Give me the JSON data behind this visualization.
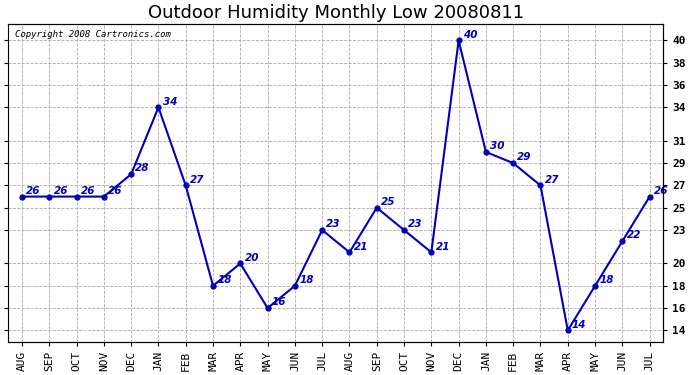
{
  "title": "Outdoor Humidity Monthly Low 20080811",
  "copyright_text": "Copyright 2008 Cartronics.com",
  "categories": [
    "AUG",
    "SEP",
    "OCT",
    "NOV",
    "DEC",
    "JAN",
    "FEB",
    "MAR",
    "APR",
    "MAY",
    "JUN",
    "JUL",
    "AUG",
    "SEP",
    "OCT",
    "NOV",
    "DEC",
    "JAN",
    "FEB",
    "MAR",
    "APR",
    "MAY",
    "JUN",
    "JUL"
  ],
  "values": [
    26,
    26,
    26,
    26,
    28,
    34,
    27,
    18,
    20,
    16,
    18,
    23,
    21,
    25,
    23,
    21,
    40,
    30,
    29,
    27,
    14,
    18,
    22,
    26
  ],
  "line_color": "#0000bb",
  "marker_color": "#0000bb",
  "ylim": [
    13,
    41.5
  ],
  "yticks_right": [
    14,
    16,
    18,
    20,
    23,
    25,
    27,
    29,
    31,
    34,
    36,
    38,
    40
  ],
  "background_color": "#ffffff",
  "plot_bg_color": "#ffffff",
  "grid_color": "#aaaaaa",
  "title_fontsize": 13,
  "tick_fontsize": 8,
  "annotation_fontsize": 7.5
}
